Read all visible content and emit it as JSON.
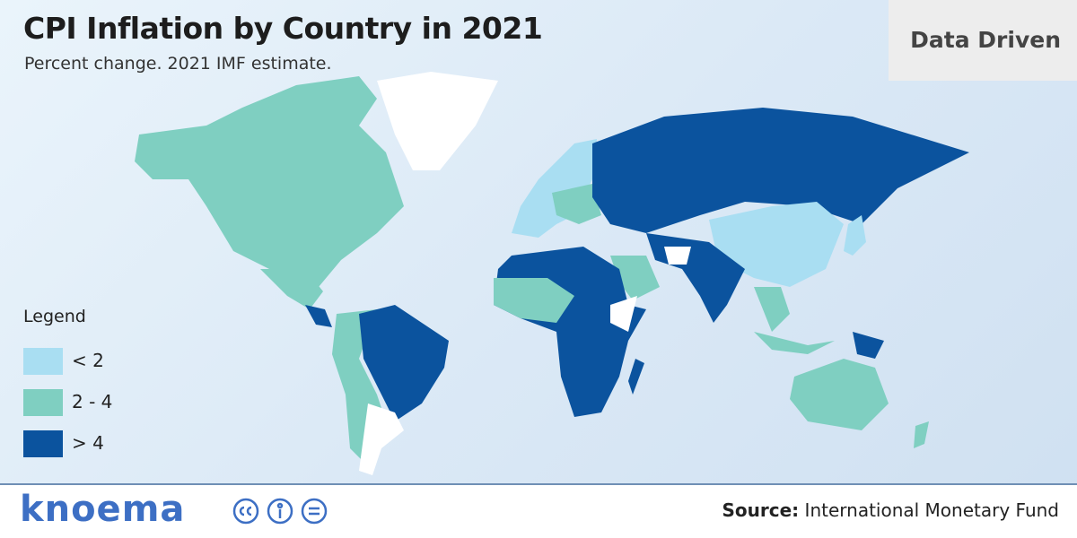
{
  "header": {
    "title": "CPI Inflation by Country in 2021",
    "subtitle": "Percent change. 2021 IMF estimate.",
    "badge": "Data Driven"
  },
  "legend": {
    "title": "Legend",
    "items": [
      {
        "label": "< 2",
        "color": "#a9def2"
      },
      {
        "label": "2 - 4",
        "color": "#7fcfc1"
      },
      {
        "label": "> 4",
        "color": "#0b539e"
      }
    ]
  },
  "footer": {
    "logo": "knoema",
    "source_label": "Source:",
    "source": "International Monetary Fund"
  }
}
